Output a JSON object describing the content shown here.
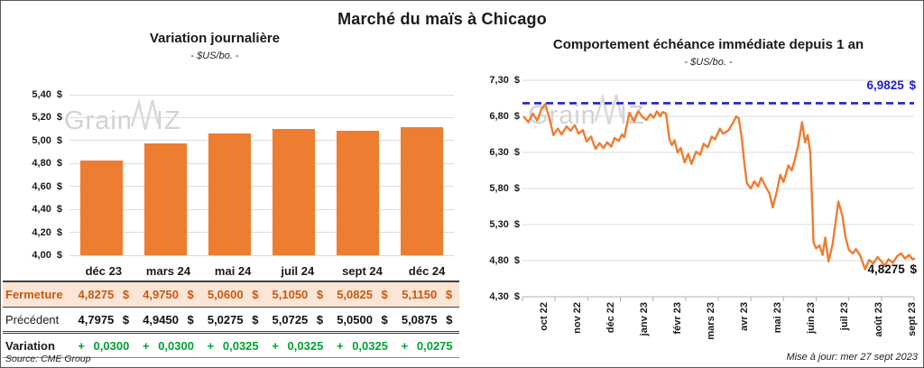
{
  "page": {
    "title": "Marché du maïs à Chicago",
    "source": "Source: CME Group",
    "updated": "Mise à jour: mer 27 sept 2023",
    "watermark": {
      "pre": "Grain",
      "post": "IZ"
    }
  },
  "chart_data": [
    {
      "type": "bar",
      "title": "Variation journalière",
      "subtitle": "- $US/bo. -",
      "categories": [
        "déc 23",
        "mars 24",
        "mai 24",
        "juil 24",
        "sept 24",
        "déc 24"
      ],
      "values": [
        4.8275,
        4.975,
        5.06,
        5.105,
        5.0825,
        5.115
      ],
      "ylim": [
        4.0,
        5.4
      ],
      "yticks": [
        "5,40 $",
        "5,20 $",
        "5,00 $",
        "4,80 $",
        "4,60 $",
        "4,40 $",
        "4,20 $",
        "4,00 $"
      ],
      "bar_color": "#ED7D31",
      "grid": true,
      "legend": "none"
    },
    {
      "type": "line",
      "title": "Comportement échéance immédiate depuis 1 an",
      "subtitle": "- $US/bo. -",
      "x_labels": [
        "oct 22",
        "nov 22",
        "déc 22",
        "janv 23",
        "févr 23",
        "mars 23",
        "avr 23",
        "mai 23",
        "juin 23",
        "juil 23",
        "août 23",
        "sept 23"
      ],
      "x_range": [
        0,
        12
      ],
      "ylim": [
        4.3,
        7.3
      ],
      "yticks": [
        "7,30 $",
        "6,80 $",
        "6,30 $",
        "5,80 $",
        "5,30 $",
        "4,80 $",
        "4,30 $"
      ],
      "line_color": "#ED7D31",
      "grid": true,
      "legend": "none",
      "reference_line": {
        "value": 6.9825,
        "label": "6,9825 $",
        "color": "#2121C8"
      },
      "end_label": "4,8275 $",
      "series": [
        {
          "name": "échéance immédiate",
          "points": [
            [
              0.05,
              6.79
            ],
            [
              0.18,
              6.72
            ],
            [
              0.32,
              6.84
            ],
            [
              0.45,
              6.74
            ],
            [
              0.58,
              6.9
            ],
            [
              0.7,
              6.97
            ],
            [
              0.82,
              6.78
            ],
            [
              0.95,
              6.54
            ],
            [
              1.08,
              6.63
            ],
            [
              1.2,
              6.55
            ],
            [
              1.35,
              6.66
            ],
            [
              1.48,
              6.6
            ],
            [
              1.6,
              6.68
            ],
            [
              1.72,
              6.56
            ],
            [
              1.85,
              6.61
            ],
            [
              1.97,
              6.45
            ],
            [
              2.1,
              6.52
            ],
            [
              2.24,
              6.35
            ],
            [
              2.36,
              6.43
            ],
            [
              2.48,
              6.36
            ],
            [
              2.6,
              6.44
            ],
            [
              2.72,
              6.38
            ],
            [
              2.82,
              6.5
            ],
            [
              2.95,
              6.46
            ],
            [
              3.05,
              6.55
            ],
            [
              3.12,
              6.51
            ],
            [
              3.28,
              6.85
            ],
            [
              3.42,
              6.73
            ],
            [
              3.55,
              6.87
            ],
            [
              3.68,
              6.79
            ],
            [
              3.8,
              6.75
            ],
            [
              3.92,
              6.83
            ],
            [
              4.02,
              6.78
            ],
            [
              4.12,
              6.87
            ],
            [
              4.22,
              6.8
            ],
            [
              4.3,
              6.86
            ],
            [
              4.4,
              6.84
            ],
            [
              4.5,
              6.49
            ],
            [
              4.58,
              6.4
            ],
            [
              4.66,
              6.47
            ],
            [
              4.75,
              6.3
            ],
            [
              4.85,
              6.36
            ],
            [
              4.97,
              6.16
            ],
            [
              5.08,
              6.28
            ],
            [
              5.18,
              6.14
            ],
            [
              5.32,
              6.31
            ],
            [
              5.45,
              6.27
            ],
            [
              5.55,
              6.42
            ],
            [
              5.68,
              6.37
            ],
            [
              5.8,
              6.52
            ],
            [
              5.9,
              6.48
            ],
            [
              6.05,
              6.63
            ],
            [
              6.15,
              6.56
            ],
            [
              6.32,
              6.61
            ],
            [
              6.45,
              6.71
            ],
            [
              6.55,
              6.8
            ],
            [
              6.63,
              6.77
            ],
            [
              6.72,
              6.5
            ],
            [
              6.8,
              6.15
            ],
            [
              6.88,
              5.87
            ],
            [
              7,
              5.8
            ],
            [
              7.1,
              5.9
            ],
            [
              7.22,
              5.83
            ],
            [
              7.32,
              5.95
            ],
            [
              7.45,
              5.83
            ],
            [
              7.57,
              5.73
            ],
            [
              7.67,
              5.54
            ],
            [
              7.8,
              5.77
            ],
            [
              7.9,
              5.99
            ],
            [
              8,
              5.89
            ],
            [
              8.15,
              6.12
            ],
            [
              8.25,
              6.05
            ],
            [
              8.33,
              6.17
            ],
            [
              8.45,
              6.4
            ],
            [
              8.57,
              6.72
            ],
            [
              8.66,
              6.44
            ],
            [
              8.74,
              6.54
            ],
            [
              8.82,
              6.3
            ],
            [
              8.92,
              5.05
            ],
            [
              9,
              4.97
            ],
            [
              9.1,
              5.01
            ],
            [
              9.2,
              4.88
            ],
            [
              9.28,
              5.12
            ],
            [
              9.38,
              4.79
            ],
            [
              9.5,
              5.02
            ],
            [
              9.6,
              5.35
            ],
            [
              9.68,
              5.62
            ],
            [
              9.8,
              5.43
            ],
            [
              9.9,
              5.12
            ],
            [
              10,
              4.95
            ],
            [
              10.12,
              4.9
            ],
            [
              10.22,
              4.96
            ],
            [
              10.35,
              4.87
            ],
            [
              10.5,
              4.68
            ],
            [
              10.62,
              4.81
            ],
            [
              10.75,
              4.76
            ],
            [
              10.88,
              4.85
            ],
            [
              11,
              4.79
            ],
            [
              11.1,
              4.73
            ],
            [
              11.22,
              4.82
            ],
            [
              11.35,
              4.77
            ],
            [
              11.48,
              4.86
            ],
            [
              11.6,
              4.9
            ],
            [
              11.72,
              4.83
            ],
            [
              11.85,
              4.88
            ],
            [
              11.95,
              4.82
            ],
            [
              12,
              4.8275
            ]
          ]
        }
      ]
    }
  ],
  "table": {
    "rows": [
      {
        "label": "Fermeture",
        "style": "close",
        "cells": [
          "4,8275 $",
          "4,9750 $",
          "5,0600 $",
          "5,1050 $",
          "5,0825 $",
          "5,1150 $"
        ]
      },
      {
        "label": "Précédent",
        "style": "previous",
        "cells": [
          "4,7975 $",
          "4,9450 $",
          "5,0275 $",
          "5,0725 $",
          "5,0500 $",
          "5,0875 $"
        ]
      },
      {
        "label": "Variation",
        "style": "variation",
        "cells": [
          "+ 0,0300",
          "+ 0,0300",
          "+ 0,0325",
          "+ 0,0325",
          "+ 0,0325",
          "+ 0,0275"
        ]
      }
    ],
    "highlight_bg": "#FBE5D6",
    "close_color": "#C55A11",
    "variation_color": "#00A232"
  }
}
